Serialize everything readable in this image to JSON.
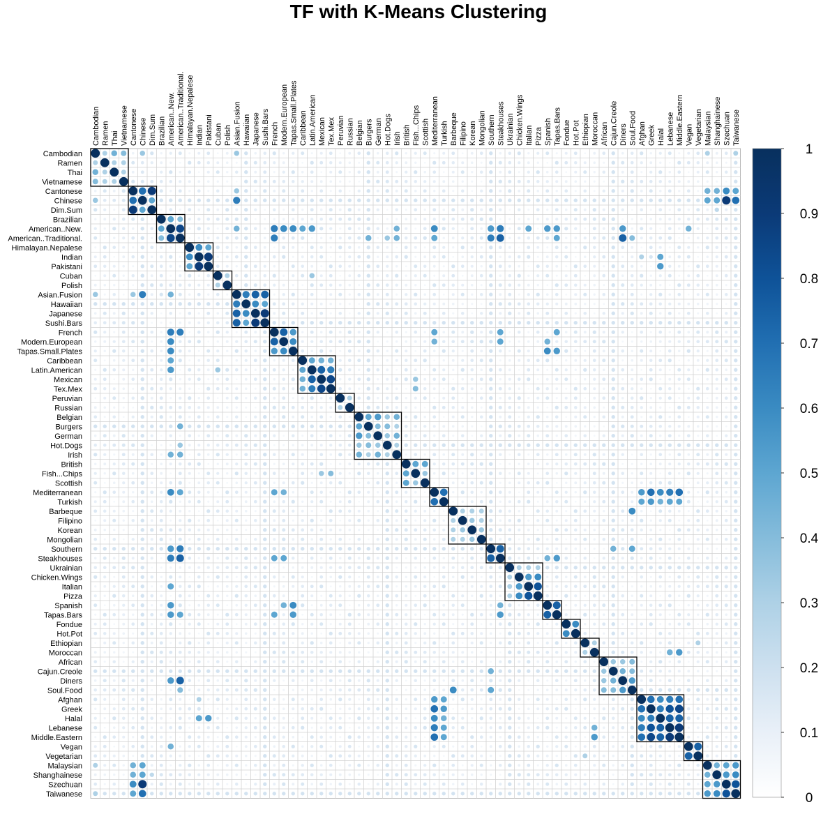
{
  "chart_data": {
    "type": "heatmap",
    "title": "TF with K-Means Clustering",
    "labels": [
      "Cambodian",
      "Ramen",
      "Thai",
      "Vietnamese",
      "Cantonese",
      "Chinese",
      "Dim.Sum",
      "Brazilian",
      "American..New.",
      "American..Traditional.",
      "Himalayan.Nepalese",
      "Indian",
      "Pakistani",
      "Cuban",
      "Polish",
      "Asian.Fusion",
      "Hawaiian",
      "Japanese",
      "Sushi.Bars",
      "French",
      "Modern.European",
      "Tapas.Small.Plates",
      "Caribbean",
      "Latin.American",
      "Mexican",
      "Tex.Mex",
      "Peruvian",
      "Russian",
      "Belgian",
      "Burgers",
      "German",
      "Hot.Dogs",
      "Irish",
      "British",
      "Fish...Chips",
      "Scottish",
      "Mediterranean",
      "Turkish",
      "Barbeque",
      "Filipino",
      "Korean",
      "Mongolian",
      "Southern",
      "Steakhouses",
      "Ukrainian",
      "Chicken.Wings",
      "Italian",
      "Pizza",
      "Spanish",
      "Tapas.Bars",
      "Fondue",
      "Hot.Pot",
      "Ethiopian",
      "Moroccan",
      "African",
      "Cajun.Creole",
      "Diners",
      "Soul.Food",
      "Afghan",
      "Greek",
      "Halal",
      "Lebanese",
      "Middle.Eastern",
      "Vegan",
      "Vegetarian",
      "Malaysian",
      "Shanghainese",
      "Szechuan",
      "Taiwanese"
    ],
    "clusters": [
      [
        0,
        3
      ],
      [
        4,
        6
      ],
      [
        7,
        9
      ],
      [
        10,
        12
      ],
      [
        13,
        14
      ],
      [
        15,
        18
      ],
      [
        19,
        21
      ],
      [
        22,
        25
      ],
      [
        26,
        27
      ],
      [
        28,
        32
      ],
      [
        33,
        35
      ],
      [
        36,
        37
      ],
      [
        38,
        41
      ],
      [
        42,
        43
      ],
      [
        44,
        47
      ],
      [
        48,
        49
      ],
      [
        50,
        51
      ],
      [
        52,
        53
      ],
      [
        54,
        57
      ],
      [
        58,
        62
      ],
      [
        63,
        64
      ],
      [
        65,
        68
      ]
    ],
    "strong_pairs": [
      [
        0,
        2,
        0.45
      ],
      [
        0,
        3,
        0.4
      ],
      [
        1,
        2,
        0.25
      ],
      [
        2,
        3,
        0.3
      ],
      [
        0,
        5,
        0.35
      ],
      [
        0,
        15,
        0.35
      ],
      [
        0,
        65,
        0.3
      ],
      [
        0,
        68,
        0.3
      ],
      [
        4,
        5,
        0.7
      ],
      [
        4,
        6,
        0.9
      ],
      [
        5,
        6,
        0.5
      ],
      [
        5,
        65,
        0.5
      ],
      [
        4,
        65,
        0.45
      ],
      [
        5,
        66,
        0.5
      ],
      [
        4,
        66,
        0.45
      ],
      [
        5,
        67,
        0.9
      ],
      [
        4,
        67,
        0.6
      ],
      [
        5,
        68,
        0.7
      ],
      [
        4,
        68,
        0.5
      ],
      [
        6,
        66,
        0.25
      ],
      [
        5,
        15,
        0.65
      ],
      [
        4,
        15,
        0.35
      ],
      [
        7,
        8,
        0.5
      ],
      [
        7,
        9,
        0.4
      ],
      [
        8,
        9,
        0.85
      ],
      [
        8,
        19,
        0.65
      ],
      [
        8,
        20,
        0.6
      ],
      [
        8,
        21,
        0.6
      ],
      [
        8,
        22,
        0.5
      ],
      [
        8,
        23,
        0.55
      ],
      [
        8,
        36,
        0.6
      ],
      [
        8,
        42,
        0.55
      ],
      [
        8,
        43,
        0.65
      ],
      [
        8,
        48,
        0.55
      ],
      [
        8,
        49,
        0.55
      ],
      [
        8,
        56,
        0.55
      ],
      [
        8,
        15,
        0.45
      ],
      [
        8,
        32,
        0.45
      ],
      [
        8,
        46,
        0.5
      ],
      [
        8,
        63,
        0.45
      ],
      [
        9,
        19,
        0.65
      ],
      [
        9,
        42,
        0.65
      ],
      [
        9,
        43,
        0.75
      ],
      [
        9,
        56,
        0.75
      ],
      [
        9,
        36,
        0.5
      ],
      [
        9,
        49,
        0.5
      ],
      [
        9,
        29,
        0.45
      ],
      [
        9,
        32,
        0.45
      ],
      [
        9,
        31,
        0.35
      ],
      [
        9,
        57,
        0.4
      ],
      [
        10,
        11,
        0.6
      ],
      [
        10,
        12,
        0.5
      ],
      [
        11,
        12,
        0.9
      ],
      [
        11,
        60,
        0.5
      ],
      [
        12,
        60,
        0.55
      ],
      [
        11,
        58,
        0.3
      ],
      [
        13,
        14,
        0.3
      ],
      [
        13,
        23,
        0.35
      ],
      [
        15,
        16,
        0.65
      ],
      [
        15,
        17,
        0.75
      ],
      [
        15,
        18,
        0.75
      ],
      [
        16,
        17,
        0.6
      ],
      [
        16,
        18,
        0.5
      ],
      [
        17,
        18,
        0.9
      ],
      [
        19,
        20,
        0.75
      ],
      [
        19,
        21,
        0.55
      ],
      [
        20,
        21,
        0.6
      ],
      [
        19,
        36,
        0.5
      ],
      [
        19,
        43,
        0.5
      ],
      [
        19,
        49,
        0.5
      ],
      [
        20,
        43,
        0.5
      ],
      [
        20,
        36,
        0.45
      ],
      [
        21,
        48,
        0.6
      ],
      [
        21,
        49,
        0.55
      ],
      [
        20,
        48,
        0.45
      ],
      [
        22,
        23,
        0.5
      ],
      [
        22,
        24,
        0.45
      ],
      [
        22,
        25,
        0.45
      ],
      [
        23,
        24,
        0.75
      ],
      [
        23,
        25,
        0.65
      ],
      [
        24,
        25,
        0.85
      ],
      [
        25,
        34,
        0.4
      ],
      [
        24,
        34,
        0.35
      ],
      [
        26,
        27,
        0.3
      ],
      [
        28,
        29,
        0.5
      ],
      [
        28,
        30,
        0.55
      ],
      [
        28,
        31,
        0.35
      ],
      [
        28,
        32,
        0.45
      ],
      [
        29,
        30,
        0.4
      ],
      [
        29,
        31,
        0.4
      ],
      [
        30,
        31,
        0.35
      ],
      [
        30,
        32,
        0.45
      ],
      [
        33,
        34,
        0.5
      ],
      [
        33,
        35,
        0.5
      ],
      [
        34,
        35,
        0.35
      ],
      [
        36,
        37,
        0.7
      ],
      [
        36,
        58,
        0.55
      ],
      [
        36,
        59,
        0.7
      ],
      [
        36,
        60,
        0.6
      ],
      [
        36,
        61,
        0.65
      ],
      [
        36,
        62,
        0.7
      ],
      [
        37,
        58,
        0.5
      ],
      [
        37,
        59,
        0.55
      ],
      [
        37,
        60,
        0.45
      ],
      [
        37,
        61,
        0.5
      ],
      [
        37,
        62,
        0.5
      ],
      [
        38,
        39,
        0.3
      ],
      [
        38,
        40,
        0.25
      ],
      [
        38,
        41,
        0.25
      ],
      [
        39,
        40,
        0.35
      ],
      [
        40,
        41,
        0.35
      ],
      [
        38,
        57,
        0.6
      ],
      [
        42,
        43,
        0.75
      ],
      [
        42,
        55,
        0.45
      ],
      [
        42,
        57,
        0.5
      ],
      [
        44,
        45,
        0.3
      ],
      [
        44,
        46,
        0.3
      ],
      [
        45,
        46,
        0.55
      ],
      [
        45,
        47,
        0.6
      ],
      [
        46,
        47,
        0.8
      ],
      [
        48,
        49,
        0.75
      ],
      [
        48,
        43,
        0.45
      ],
      [
        49,
        43,
        0.55
      ],
      [
        50,
        51,
        0.6
      ],
      [
        52,
        53,
        0.3
      ],
      [
        52,
        64,
        0.3
      ],
      [
        54,
        55,
        0.35
      ],
      [
        54,
        56,
        0.35
      ],
      [
        54,
        57,
        0.4
      ],
      [
        55,
        56,
        0.45
      ],
      [
        55,
        57,
        0.4
      ],
      [
        56,
        57,
        0.55
      ],
      [
        58,
        59,
        0.7
      ],
      [
        58,
        60,
        0.6
      ],
      [
        58,
        61,
        0.65
      ],
      [
        58,
        62,
        0.7
      ],
      [
        59,
        60,
        0.65
      ],
      [
        59,
        61,
        0.8
      ],
      [
        59,
        62,
        0.85
      ],
      [
        60,
        61,
        0.75
      ],
      [
        60,
        62,
        0.75
      ],
      [
        61,
        62,
        0.9
      ],
      [
        53,
        62,
        0.55
      ],
      [
        53,
        61,
        0.45
      ],
      [
        63,
        64,
        0.75
      ],
      [
        65,
        66,
        0.45
      ],
      [
        65,
        67,
        0.5
      ],
      [
        65,
        68,
        0.55
      ],
      [
        66,
        67,
        0.55
      ],
      [
        66,
        68,
        0.6
      ],
      [
        67,
        68,
        0.8
      ]
    ],
    "colorbar": {
      "ticks": [
        "0",
        "0.1",
        "0.2",
        "0.3",
        "0.4",
        "0.5",
        "0.6",
        "0.7",
        "0.8",
        "0.9",
        "1"
      ],
      "min": 0,
      "max": 1,
      "colors": [
        "#ffffff",
        "#e9f0f8",
        "#cde0ef",
        "#aed1e6",
        "#85bcdb",
        "#5da6d1",
        "#3a8bc2",
        "#216fb2",
        "#0e5298",
        "#0b3a77",
        "#08305e"
      ]
    }
  }
}
